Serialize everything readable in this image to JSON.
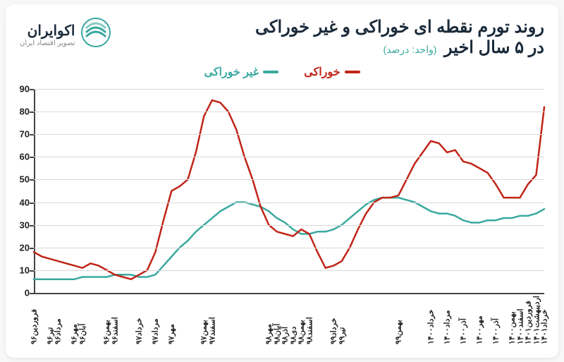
{
  "header": {
    "title_line1": "روند تورم نقطه ای خوراکی و غیر خوراکی",
    "title_line2": "در ۵ سال اخیر",
    "unit": "(واحد: درصد)"
  },
  "logo": {
    "name": "اکوایران",
    "tagline": "تصویر اقتصاد ایران"
  },
  "legend": {
    "series1": {
      "label": "خوراکی",
      "color": "#c02418"
    },
    "series2": {
      "label": "غیر خوراکی",
      "color": "#3aa9a0"
    }
  },
  "chart": {
    "type": "line",
    "background_color": "#ffffff",
    "grid_color": "#d9d9d9",
    "axis_color": "#444444",
    "ylim": [
      0,
      90
    ],
    "ytick_step": 10,
    "yticks": [
      0,
      10,
      20,
      30,
      40,
      50,
      60,
      70,
      80,
      90
    ],
    "line_width": 2.5,
    "x_labels": [
      "فروردین۹۶",
      "تیر۹۶",
      "مرداد۹۶",
      "مهر۹۶",
      "آبان۹۶",
      "بهمن۹۶",
      "اسفند۹۶",
      "خرداد۹۷",
      "مرداد۹۷",
      "مهر۹۷",
      "بهمن۹۷",
      "اسفند۹۷",
      "مهر۹۸",
      "آبان۹۸",
      "آذر۹۸",
      "دی۹۸",
      "بهمن۹۸",
      "اسفند۹۸",
      "خرداد۹۹",
      "تیر۹۹",
      "بهمن۹۹",
      "خرداد۱۴۰۰",
      "مرداد۱۴۰۰",
      "آذر۱۴۰۰",
      "مهر۱۴۰۰",
      "آذر۱۴۰۰",
      "بهمن۱۴۰۰",
      "اسفند۱۴۰۰",
      "فروردین۱۴۰۱",
      "اردیبهشت۱۴۰۱",
      "خرداد۱۴۰۱"
    ],
    "tick_positions": [
      0,
      2,
      3,
      5,
      6,
      9,
      10,
      13,
      15,
      17,
      21,
      22,
      29,
      30,
      31,
      32,
      33,
      34,
      37,
      38,
      45,
      49,
      51,
      53,
      55,
      57,
      59,
      60,
      61,
      62,
      63
    ],
    "n_points": 64,
    "series": {
      "food": {
        "color": "#c02418",
        "values": [
          18,
          16,
          15,
          14,
          13,
          12,
          11,
          13,
          12,
          10,
          8,
          7,
          6,
          8,
          10,
          18,
          32,
          45,
          47,
          50,
          62,
          78,
          85,
          84,
          80,
          72,
          60,
          50,
          38,
          30,
          27,
          26,
          25,
          28,
          26,
          18,
          11,
          12,
          14,
          20,
          28,
          35,
          40,
          42,
          42,
          43,
          50,
          57,
          62,
          67,
          66,
          62,
          63,
          58,
          57,
          55,
          53,
          48,
          42,
          42,
          42,
          48,
          52,
          82
        ]
      },
      "nonfood": {
        "color": "#3aa9a0",
        "values": [
          6,
          6,
          6,
          6,
          6,
          6,
          7,
          7,
          7,
          7,
          8,
          8,
          8,
          7,
          7,
          8,
          12,
          16,
          20,
          23,
          27,
          30,
          33,
          36,
          38,
          40,
          40,
          39,
          38,
          36,
          33,
          31,
          28,
          26,
          26,
          27,
          27,
          28,
          30,
          33,
          36,
          39,
          41,
          42,
          42,
          42,
          41,
          40,
          38,
          36,
          35,
          35,
          34,
          32,
          31,
          31,
          32,
          32,
          33,
          33,
          34,
          34,
          35,
          37
        ]
      }
    }
  }
}
